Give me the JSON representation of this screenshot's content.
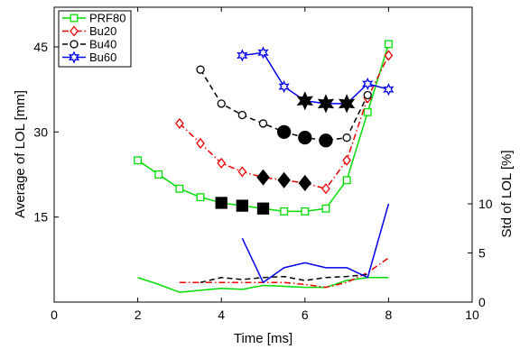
{
  "chart_data": {
    "type": "line",
    "title": "",
    "xlabel": "Time [ms]",
    "ylabel_left": "Average of LOL [mm]",
    "ylabel_right": "Std of LOL [%]",
    "xlim": [
      0,
      10
    ],
    "xticks": [
      0,
      2,
      4,
      6,
      8,
      10
    ],
    "ylim_left": [
      0,
      52
    ],
    "yticks_left": [
      15,
      30,
      45
    ],
    "ylim_right": [
      0,
      30
    ],
    "yticks_right": [
      0,
      5,
      10
    ],
    "grid": false,
    "legend_position": "top-left",
    "legend": [
      "PRF80",
      "Bu20",
      "Bu40",
      "Bu60"
    ],
    "series": [
      {
        "name": "PRF80",
        "axis": "left",
        "color": "#00dd00",
        "line": "solid",
        "marker": "square-open",
        "x": [
          2,
          2.5,
          3,
          3.5,
          4,
          4.5,
          5,
          5.5,
          6,
          6.5,
          7,
          7.5,
          8
        ],
        "y": [
          25,
          22.5,
          20,
          18.5,
          17.5,
          17,
          16.5,
          16,
          16,
          16.5,
          21.5,
          33.5,
          45.5
        ]
      },
      {
        "name": "Bu20",
        "axis": "left",
        "color": "#ee0000",
        "line": "dashdot",
        "marker": "diamond-open",
        "x": [
          3,
          3.5,
          4,
          4.5,
          5,
          5.5,
          6,
          6.5,
          7,
          7.5,
          8
        ],
        "y": [
          31.5,
          28,
          24.5,
          23,
          22,
          21.5,
          21,
          20,
          25,
          36,
          43.5
        ]
      },
      {
        "name": "Bu40",
        "axis": "left",
        "color": "#000000",
        "line": "dashed",
        "marker": "circle-open",
        "x": [
          3.5,
          4,
          4.5,
          5,
          5.5,
          6,
          6.5,
          7,
          7.5
        ],
        "y": [
          41,
          35,
          33,
          31.5,
          30,
          29,
          28.5,
          29,
          36.5
        ]
      },
      {
        "name": "Bu60",
        "axis": "left",
        "color": "#0000ee",
        "line": "solid",
        "marker": "hexagram-open",
        "x": [
          4.5,
          5,
          5.5,
          6,
          6.5,
          7,
          7.5,
          8
        ],
        "y": [
          43.5,
          44,
          38,
          35.5,
          35,
          35,
          38.5,
          37.5
        ]
      },
      {
        "name": "",
        "axis": "right",
        "color": "#00dd00",
        "line": "solid",
        "marker": "none",
        "x": [
          2,
          2.5,
          3,
          3.5,
          4,
          4.5,
          5,
          5.5,
          6,
          6.5,
          7,
          7.5,
          8
        ],
        "y": [
          2.5,
          1.8,
          1,
          1.2,
          1.4,
          1.3,
          1.7,
          1.6,
          1.5,
          1.5,
          2.2,
          2.5,
          2.5
        ]
      },
      {
        "name": "",
        "axis": "right",
        "color": "#ee0000",
        "line": "dashdot",
        "marker": "none",
        "x": [
          3,
          3.5,
          4,
          4.5,
          5,
          5.5,
          6,
          6.5,
          7,
          7.5,
          8
        ],
        "y": [
          2,
          2,
          2,
          2,
          2,
          2,
          1.8,
          1.5,
          2,
          3,
          4.5
        ]
      },
      {
        "name": "",
        "axis": "right",
        "color": "#000000",
        "line": "dashed",
        "marker": "none",
        "x": [
          3.5,
          4,
          4.5,
          5,
          5.5,
          6,
          6.5,
          7,
          7.5
        ],
        "y": [
          2,
          2.5,
          2.3,
          2.5,
          2.6,
          2.2,
          2.5,
          2.6,
          2.8
        ]
      },
      {
        "name": "",
        "axis": "right",
        "color": "#0000ee",
        "line": "solid",
        "marker": "none",
        "x": [
          4.5,
          5,
          5.5,
          6,
          6.5,
          7,
          7.5,
          8
        ],
        "y": [
          6.5,
          2,
          3.5,
          4,
          3.5,
          3.5,
          2.5,
          10
        ]
      }
    ],
    "highlights": [
      {
        "series": "PRF80",
        "marker": "square-filled",
        "x": [
          4,
          4.5,
          5
        ],
        "y": [
          17.5,
          17,
          16.5
        ]
      },
      {
        "series": "Bu20",
        "marker": "diamond-filled",
        "x": [
          5,
          5.5,
          6
        ],
        "y": [
          22,
          21.5,
          21
        ]
      },
      {
        "series": "Bu40",
        "marker": "circle-filled",
        "x": [
          5.5,
          6,
          6.5
        ],
        "y": [
          30,
          29,
          28.5
        ]
      },
      {
        "series": "Bu60",
        "marker": "hexagram-filled",
        "x": [
          6,
          6.5,
          7
        ],
        "y": [
          35.5,
          35,
          35
        ]
      }
    ]
  }
}
